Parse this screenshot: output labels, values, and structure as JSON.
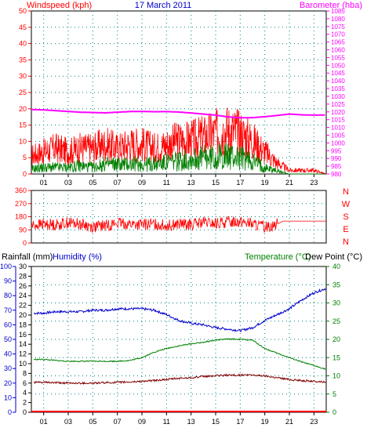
{
  "chart_data": [
    {
      "type": "line",
      "title": "17 March 2011",
      "ylabel": "Windspeed (kph)",
      "y2label": "Barometer (hba)",
      "xlim": [
        0,
        24
      ],
      "ylim": [
        0,
        50
      ],
      "y2lim": [
        980,
        1085
      ],
      "x_ticks": [
        "01",
        "03",
        "05",
        "07",
        "09",
        "11",
        "13",
        "15",
        "17",
        "19",
        "21",
        "23"
      ],
      "x_tick_values": [
        1,
        3,
        5,
        7,
        9,
        11,
        13,
        15,
        17,
        19,
        21,
        23
      ],
      "y_ticks": [
        0,
        5,
        10,
        15,
        20,
        25,
        30,
        35,
        40,
        45,
        50
      ],
      "y2_ticks": [
        980,
        985,
        990,
        995,
        1000,
        1005,
        1010,
        1015,
        1020,
        1025,
        1030,
        1035,
        1040,
        1045,
        1050,
        1055,
        1060,
        1065,
        1070,
        1075,
        1080,
        1085
      ],
      "grid": true,
      "colors": {
        "gust": "#ff0000",
        "wind": "#008000",
        "barometer": "#ff00ff",
        "axis_left": "#ff0000",
        "axis_right": "#ff00ff",
        "title": "#0000cc"
      },
      "series": [
        {
          "name": "Barometer",
          "axis": "right",
          "x": [
            0,
            1,
            2,
            3,
            4,
            5,
            6,
            7,
            8,
            9,
            10,
            11,
            12,
            13,
            14,
            15,
            16,
            17,
            18,
            19,
            20,
            21,
            22,
            23,
            24
          ],
          "values": [
            1021.5,
            1021.3,
            1020.8,
            1020.3,
            1019.8,
            1019.6,
            1019.4,
            1019.8,
            1020.2,
            1020.3,
            1020.1,
            1020.2,
            1019.9,
            1019.3,
            1018.6,
            1017.9,
            1016.8,
            1016.2,
            1016.3,
            1016.9,
            1017.7,
            1018.6,
            1018.1,
            1017.9,
            1018.0
          ]
        },
        {
          "name": "Gust",
          "axis": "left",
          "x": [
            0,
            1,
            2,
            3,
            4,
            5,
            6,
            7,
            8,
            9,
            10,
            11,
            12,
            13,
            14,
            15,
            16,
            17,
            18,
            19,
            20,
            21,
            22,
            23,
            24
          ],
          "values": [
            5,
            6,
            7,
            6,
            7,
            7,
            8,
            7,
            8,
            8,
            7,
            8,
            9,
            9,
            10,
            11,
            12,
            11,
            9,
            6,
            3,
            1,
            1,
            1,
            0
          ]
        },
        {
          "name": "Wind",
          "axis": "left",
          "x": [
            0,
            1,
            2,
            3,
            4,
            5,
            6,
            7,
            8,
            9,
            10,
            11,
            12,
            13,
            14,
            15,
            16,
            17,
            18,
            19,
            20,
            21,
            22,
            23,
            24
          ],
          "values": [
            1.5,
            2,
            2,
            2,
            2.5,
            2,
            3,
            3,
            3,
            3,
            3,
            3.5,
            4,
            4.5,
            5,
            5,
            5.5,
            5,
            4,
            2,
            1,
            0,
            0,
            0,
            0
          ]
        }
      ]
    },
    {
      "type": "line",
      "right_labels": [
        "N",
        "W",
        "S",
        "E",
        "N"
      ],
      "xlim": [
        0,
        24
      ],
      "ylim": [
        0,
        360
      ],
      "y_ticks": [
        0,
        90,
        180,
        270,
        360
      ],
      "grid": true,
      "colors": {
        "direction": "#ff0000",
        "right_labels": "#ff0000"
      },
      "series": [
        {
          "name": "Wind Direction",
          "x": [
            0,
            1,
            2,
            3,
            4,
            5,
            6,
            7,
            8,
            9,
            10,
            11,
            12,
            13,
            14,
            15,
            16,
            17,
            18,
            19,
            20,
            20.5,
            24
          ],
          "values": [
            120,
            130,
            125,
            140,
            130,
            110,
            120,
            135,
            130,
            125,
            130,
            120,
            130,
            125,
            140,
            130,
            145,
            150,
            130,
            110,
            130,
            150,
            150
          ]
        }
      ]
    },
    {
      "type": "line",
      "labels": {
        "rainfall": "Rainfall (mm)",
        "humidity": "Humidity (%)",
        "temperature": "Temperature (°C)",
        "dewpoint": "Dew Point (°C)"
      },
      "xlim": [
        0,
        24
      ],
      "ylim_humidity": [
        0,
        100
      ],
      "ylim_rain": [
        0,
        30
      ],
      "ylim_temp": [
        0,
        40
      ],
      "humidity_ticks": [
        0,
        10,
        20,
        30,
        40,
        50,
        60,
        70,
        80,
        90,
        100
      ],
      "rain_ticks": [
        0,
        2,
        4,
        6,
        8,
        10,
        12,
        14,
        16,
        18,
        20,
        22,
        24,
        26,
        28,
        30
      ],
      "temp_ticks": [
        0,
        5,
        10,
        15,
        20,
        25,
        30,
        35,
        40
      ],
      "x_ticks": [
        "01",
        "03",
        "05",
        "07",
        "09",
        "11",
        "13",
        "15",
        "17",
        "19",
        "21",
        "23"
      ],
      "x_tick_values": [
        1,
        3,
        5,
        7,
        9,
        11,
        13,
        15,
        17,
        19,
        21,
        23
      ],
      "grid": true,
      "colors": {
        "humidity": "#0000cc",
        "temperature": "#008000",
        "dewpoint": "#800000",
        "rainfall": "#ff0000",
        "axis_humidity": "#0000cc",
        "axis_temp": "#008000"
      },
      "series": [
        {
          "name": "Humidity",
          "axis": "humidity",
          "x": [
            0,
            1,
            2,
            3,
            4,
            5,
            6,
            7,
            8,
            9,
            10,
            11,
            12,
            13,
            14,
            15,
            16,
            17,
            18,
            19,
            20,
            21,
            22,
            23,
            24
          ],
          "values": [
            68,
            68,
            69,
            69,
            69,
            70,
            70,
            71,
            71,
            71,
            70,
            67,
            63,
            61,
            60,
            58,
            57,
            56,
            58,
            63,
            67,
            71,
            77,
            82,
            85
          ]
        },
        {
          "name": "Temperature",
          "axis": "temp",
          "x": [
            0,
            1,
            2,
            3,
            4,
            5,
            6,
            7,
            8,
            9,
            10,
            11,
            12,
            13,
            14,
            15,
            16,
            17,
            18,
            19,
            20,
            21,
            22,
            23,
            24
          ],
          "values": [
            14.5,
            14.5,
            14.2,
            14,
            14,
            14,
            14,
            14,
            14.2,
            15,
            16.5,
            17.5,
            18.2,
            18.8,
            19.2,
            19.8,
            20.1,
            20,
            19.8,
            17.5,
            16.2,
            15,
            13.8,
            12.8,
            11.8
          ]
        },
        {
          "name": "Dew Point",
          "axis": "temp",
          "x": [
            0,
            1,
            2,
            3,
            4,
            5,
            6,
            7,
            8,
            9,
            10,
            11,
            12,
            13,
            14,
            15,
            16,
            17,
            18,
            19,
            20,
            21,
            22,
            23,
            24
          ],
          "values": [
            8.2,
            8.2,
            8.1,
            8,
            8,
            8,
            8.1,
            8.2,
            8.3,
            8.5,
            8.7,
            9,
            9.3,
            9.5,
            9.8,
            10,
            10.2,
            10.2,
            10.2,
            10,
            9.5,
            9,
            8.7,
            8.5,
            8.3
          ]
        },
        {
          "name": "Rainfall",
          "axis": "rain",
          "x": [
            0,
            24
          ],
          "values": [
            0,
            0
          ]
        }
      ]
    }
  ]
}
